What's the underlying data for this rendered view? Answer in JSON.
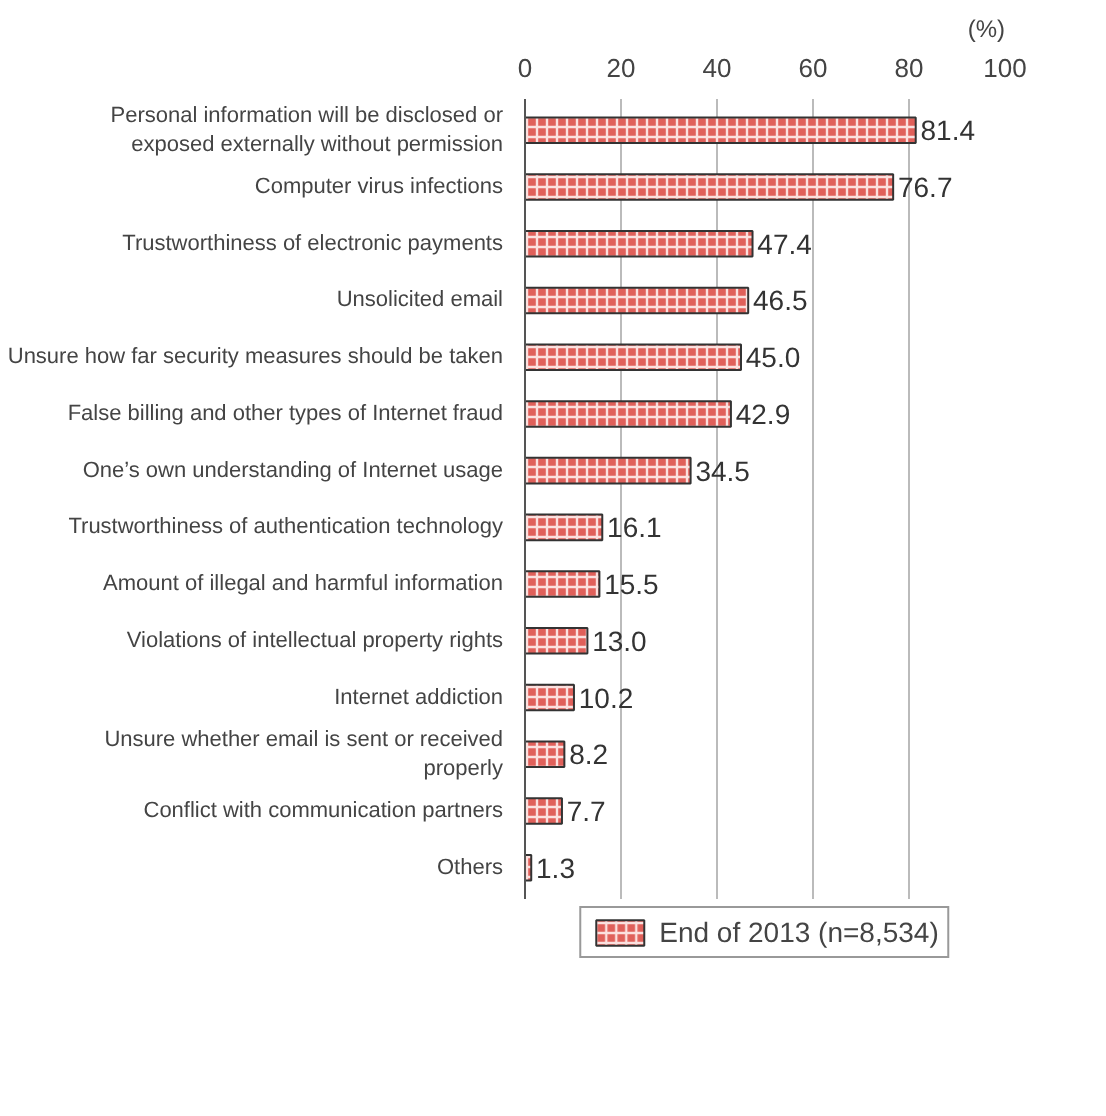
{
  "chart_data": {
    "type": "bar",
    "orientation": "horizontal",
    "xlabel": "(%)",
    "categories": [
      "Personal information will be disclosed or exposed externally without permission",
      "Computer virus infections",
      "Trustworthiness of electronic payments",
      "Unsolicited email",
      "Unsure how far security measures should be taken",
      "False billing and other types of Internet fraud",
      "One’s own understanding of Internet usage",
      "Trustworthiness of authentication technology",
      "Amount of illegal and harmful information",
      "Violations of intellectual property rights",
      "Internet addiction",
      "Unsure whether email is sent or received properly",
      "Conflict with communication partners",
      "Others"
    ],
    "series": [
      {
        "name": "End of 2013 (n=8,534)",
        "color": "#e0605a",
        "values": [
          81.4,
          76.7,
          47.4,
          46.5,
          45.0,
          42.9,
          34.5,
          16.1,
          15.5,
          13.0,
          10.2,
          8.2,
          7.7,
          1.3
        ]
      }
    ],
    "value_labels": [
      "81.4",
      "76.7",
      "47.4",
      "46.5",
      "45.0",
      "42.9",
      "34.5",
      "16.1",
      "15.5",
      "13.0",
      "10.2",
      "8.2",
      "7.7",
      "1.3"
    ],
    "xlim": [
      0,
      100
    ],
    "xticks": [
      0,
      20,
      40,
      60,
      80,
      100
    ],
    "grid": "x",
    "legend": "bottom"
  }
}
